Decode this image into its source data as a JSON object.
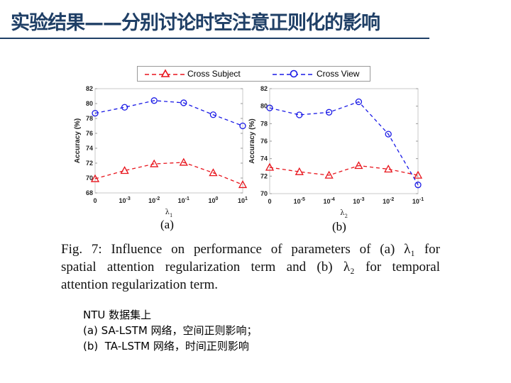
{
  "header": {
    "title": "实验结果——分别讨论时空注意正则化的影响"
  },
  "legend": {
    "items": [
      {
        "label": "Cross Subject",
        "color": "#e8141c",
        "marker": "triangle",
        "line": "dashed"
      },
      {
        "label": "Cross View",
        "color": "#1a1ae6",
        "marker": "circle",
        "line": "dashed"
      }
    ]
  },
  "chart_data": [
    {
      "type": "line",
      "id": "a",
      "subcaption": "(a)",
      "xlabel": "λ1",
      "ylabel": "Accuracy (%)",
      "categories": [
        "0",
        "10^-3",
        "10^-2",
        "10^-1",
        "10^0",
        "10^1"
      ],
      "ylim": [
        68,
        82
      ],
      "yticks": [
        68,
        70,
        72,
        74,
        76,
        78,
        80,
        82
      ],
      "grid": false,
      "series": [
        {
          "name": "Cross Subject",
          "color": "#e8141c",
          "marker": "triangle",
          "values": [
            69.9,
            71.0,
            71.9,
            72.1,
            70.7,
            69.1
          ]
        },
        {
          "name": "Cross View",
          "color": "#1a1ae6",
          "marker": "circle",
          "values": [
            78.7,
            79.5,
            80.4,
            80.1,
            78.5,
            77.0
          ]
        }
      ]
    },
    {
      "type": "line",
      "id": "b",
      "subcaption": "(b)",
      "xlabel": "λ2",
      "ylabel": "Accuracy (%)",
      "categories": [
        "0",
        "10^-5",
        "10^-4",
        "10^-3",
        "10^-2",
        "10^-1"
      ],
      "ylim": [
        70,
        82
      ],
      "yticks": [
        70,
        72,
        74,
        76,
        78,
        80,
        82
      ],
      "grid": false,
      "series": [
        {
          "name": "Cross Subject",
          "color": "#e8141c",
          "marker": "triangle",
          "values": [
            73.0,
            72.5,
            72.1,
            73.2,
            72.8,
            72.1
          ]
        },
        {
          "name": "Cross View",
          "color": "#1a1ae6",
          "marker": "circle",
          "values": [
            79.8,
            79.0,
            79.3,
            80.5,
            76.8,
            71.0
          ]
        }
      ]
    }
  ],
  "caption": {
    "lines": [
      "Fig. 7: Influence on performance of parameters of (a) λ₁ for",
      "spatial attention regularization term and (b) λ₂ for temporal",
      "attention regularization term."
    ]
  },
  "notes": {
    "lines": [
      "NTU 数据集上",
      "(a) SA-LSTM 网络，空间正则影响；",
      "(b)  TA-LSTM 网络，时间正则影响"
    ]
  }
}
